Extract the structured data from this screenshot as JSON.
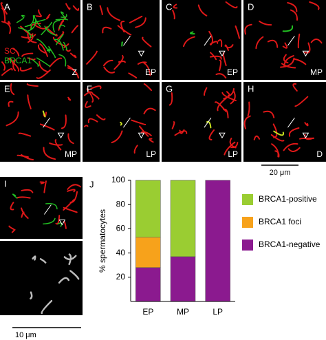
{
  "panels": [
    {
      "letter": "A",
      "stage": "Z"
    },
    {
      "letter": "B",
      "stage": "EP"
    },
    {
      "letter": "C",
      "stage": "EP"
    },
    {
      "letter": "D",
      "stage": "MP"
    },
    {
      "letter": "E",
      "stage": "MP"
    },
    {
      "letter": "F",
      "stage": "LP"
    },
    {
      "letter": "G",
      "stage": "LP"
    },
    {
      "letter": "H",
      "stage": "D"
    },
    {
      "letter": "I"
    }
  ],
  "stain_labels": [
    "SC",
    "BRCA1"
  ],
  "scale_bars": [
    "20 μm",
    "10 μm"
  ],
  "chart_data": {
    "type": "stacked-bar",
    "panel_label": "J",
    "y_label": "% spermatocytes",
    "categories": [
      "EP",
      "MP",
      "LP"
    ],
    "series": [
      {
        "name": "BRCA1-negative",
        "color": "#8b1a8f",
        "values": [
          28,
          37,
          100
        ]
      },
      {
        "name": "BRCA1 foci",
        "color": "#f7a21b",
        "values": [
          25,
          null,
          null
        ]
      },
      {
        "name": "BRCA1-positive",
        "color": "#9acd32",
        "values": [
          47,
          63,
          null
        ]
      }
    ],
    "ylim": [
      0,
      100
    ],
    "yticks": [
      20,
      40,
      60,
      80,
      100
    ]
  }
}
